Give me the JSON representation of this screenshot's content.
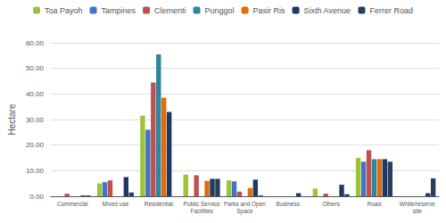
{
  "chart_data": {
    "type": "bar",
    "categories": [
      "Commercial",
      "Mixed use",
      "Residential",
      "Public Service\nFacilities",
      "Parks and Open\nSpace",
      "Business",
      "Others",
      "Road",
      "White/reserve\nsite"
    ],
    "series": [
      {
        "name": "Toa Payoh",
        "color": "#9dc33a",
        "values": [
          0,
          5.0,
          31.5,
          8.5,
          6.2,
          0,
          3.0,
          15.0,
          0
        ]
      },
      {
        "name": "Tampines",
        "color": "#4472c4",
        "values": [
          0,
          5.5,
          26.0,
          0,
          5.8,
          0,
          0,
          13.5,
          0
        ]
      },
      {
        "name": "Clementi",
        "color": "#c0504d",
        "values": [
          1.0,
          6.2,
          44.5,
          8.2,
          1.8,
          0,
          1.0,
          18.0,
          0
        ]
      },
      {
        "name": "Punggol",
        "color": "#31849b",
        "values": [
          0,
          0,
          55.5,
          0,
          0,
          0,
          0,
          14.5,
          0
        ]
      },
      {
        "name": "Pasir Ris",
        "color": "#e26b0a",
        "values": [
          0,
          0,
          38.5,
          6.0,
          3.2,
          0,
          0,
          14.5,
          0
        ]
      },
      {
        "name": "Sixth Avenue",
        "color": "#1f3864",
        "values": [
          0.3,
          7.5,
          33.0,
          6.8,
          6.5,
          1.2,
          4.5,
          14.5,
          1.2
        ]
      },
      {
        "name": "Ferrer Road",
        "color": "#243f60",
        "values": [
          0.3,
          1.5,
          0,
          6.8,
          0.3,
          0,
          0.8,
          13.5,
          7.0
        ]
      }
    ],
    "ylabel": "Hectare",
    "ylim": [
      0,
      60
    ],
    "yticks": [
      {
        "value": 0,
        "label": "0.00"
      },
      {
        "value": 10,
        "label": "10.00"
      },
      {
        "value": 20,
        "label": "20.00"
      },
      {
        "value": 30,
        "label": "30.00"
      },
      {
        "value": 40,
        "label": "40.00"
      },
      {
        "value": 50,
        "label": "50.00"
      },
      {
        "value": 60,
        "label": "60.00"
      }
    ],
    "grid": true,
    "legend": "top"
  }
}
